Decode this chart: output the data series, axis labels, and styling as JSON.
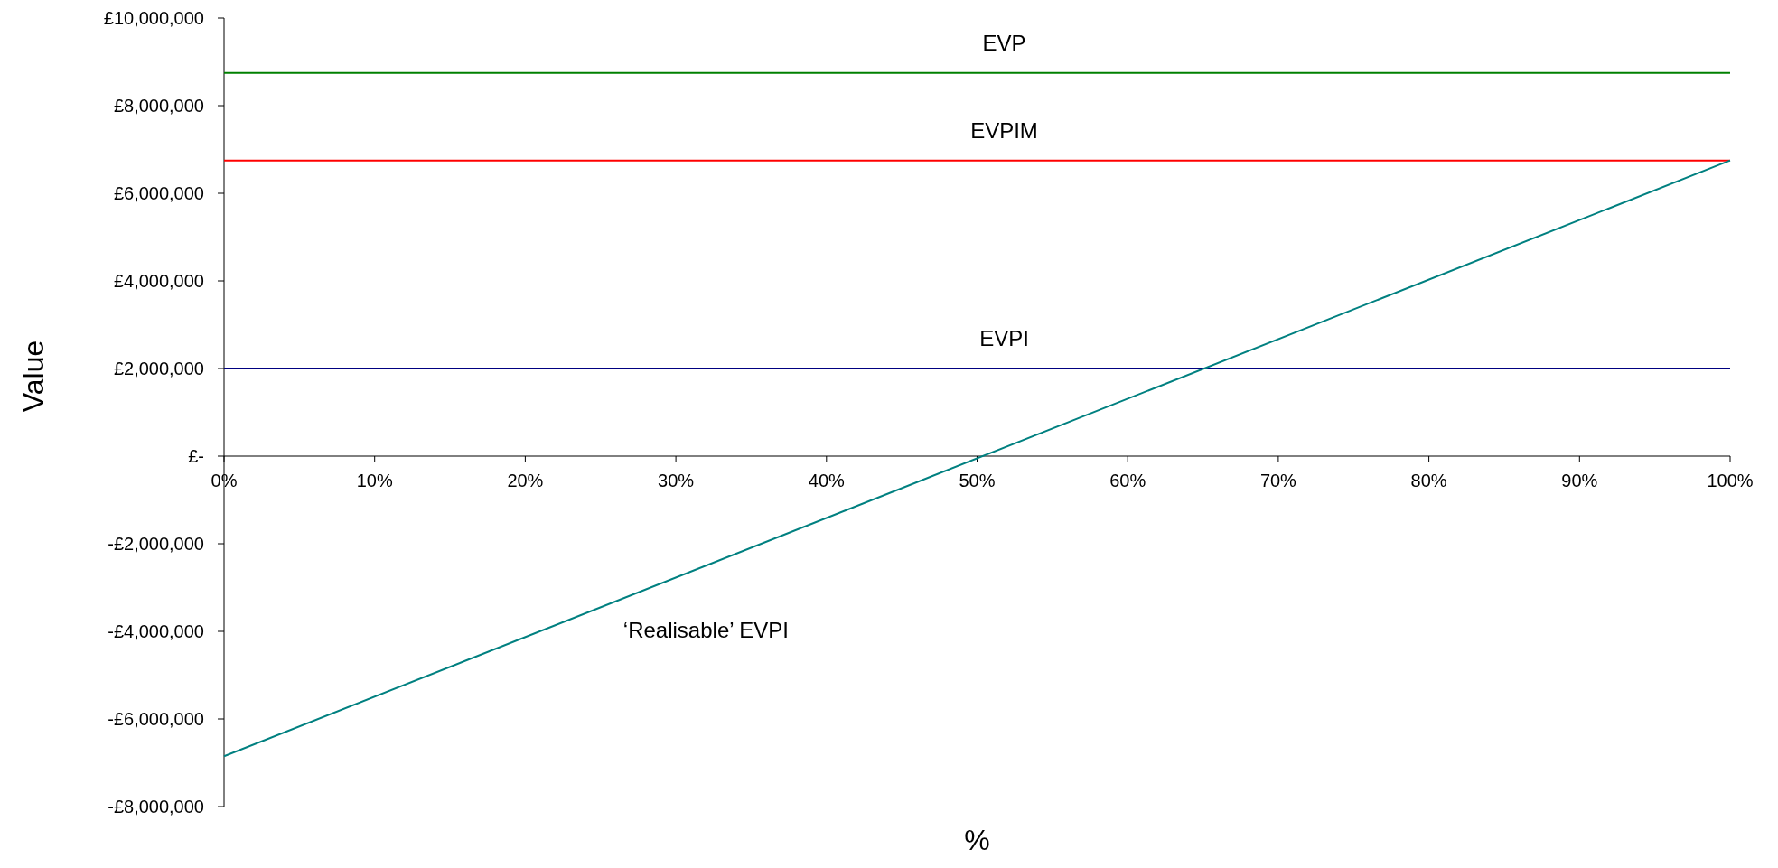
{
  "chart_data": {
    "type": "line",
    "xlabel": "%",
    "ylabel": "Value",
    "xlim": [
      0,
      100
    ],
    "ylim": [
      -8000000,
      10000000
    ],
    "xticks": [
      {
        "value": 0,
        "label": "0%"
      },
      {
        "value": 10,
        "label": "10%"
      },
      {
        "value": 20,
        "label": "20%"
      },
      {
        "value": 30,
        "label": "30%"
      },
      {
        "value": 40,
        "label": "40%"
      },
      {
        "value": 50,
        "label": "50%"
      },
      {
        "value": 60,
        "label": "60%"
      },
      {
        "value": 70,
        "label": "70%"
      },
      {
        "value": 80,
        "label": "80%"
      },
      {
        "value": 90,
        "label": "90%"
      },
      {
        "value": 100,
        "label": "100%"
      }
    ],
    "yticks": [
      {
        "value": -8000000,
        "label": "-£8,000,000"
      },
      {
        "value": -6000000,
        "label": "-£6,000,000"
      },
      {
        "value": -4000000,
        "label": "-£4,000,000"
      },
      {
        "value": -2000000,
        "label": "-£2,000,000"
      },
      {
        "value": 0,
        "label": "£-"
      },
      {
        "value": 2000000,
        "label": "£2,000,000"
      },
      {
        "value": 4000000,
        "label": "£4,000,000"
      },
      {
        "value": 6000000,
        "label": "£6,000,000"
      },
      {
        "value": 8000000,
        "label": "£8,000,000"
      },
      {
        "value": 10000000,
        "label": "£10,000,000"
      }
    ],
    "x": [
      0,
      100
    ],
    "grid": false,
    "marker": "none",
    "line_style": "solid",
    "series": [
      {
        "name": "EVP",
        "color": "#008000",
        "values": [
          8750000,
          8750000
        ]
      },
      {
        "name": "EVPIM",
        "color": "#ff0000",
        "values": [
          6750000,
          6750000
        ]
      },
      {
        "name": "EVPI",
        "color": "#000080",
        "values": [
          2000000,
          2000000
        ]
      },
      {
        "name": "‘Realisable’ EVPI",
        "color": "#008080",
        "values": [
          -6850000,
          6750000
        ]
      }
    ]
  }
}
